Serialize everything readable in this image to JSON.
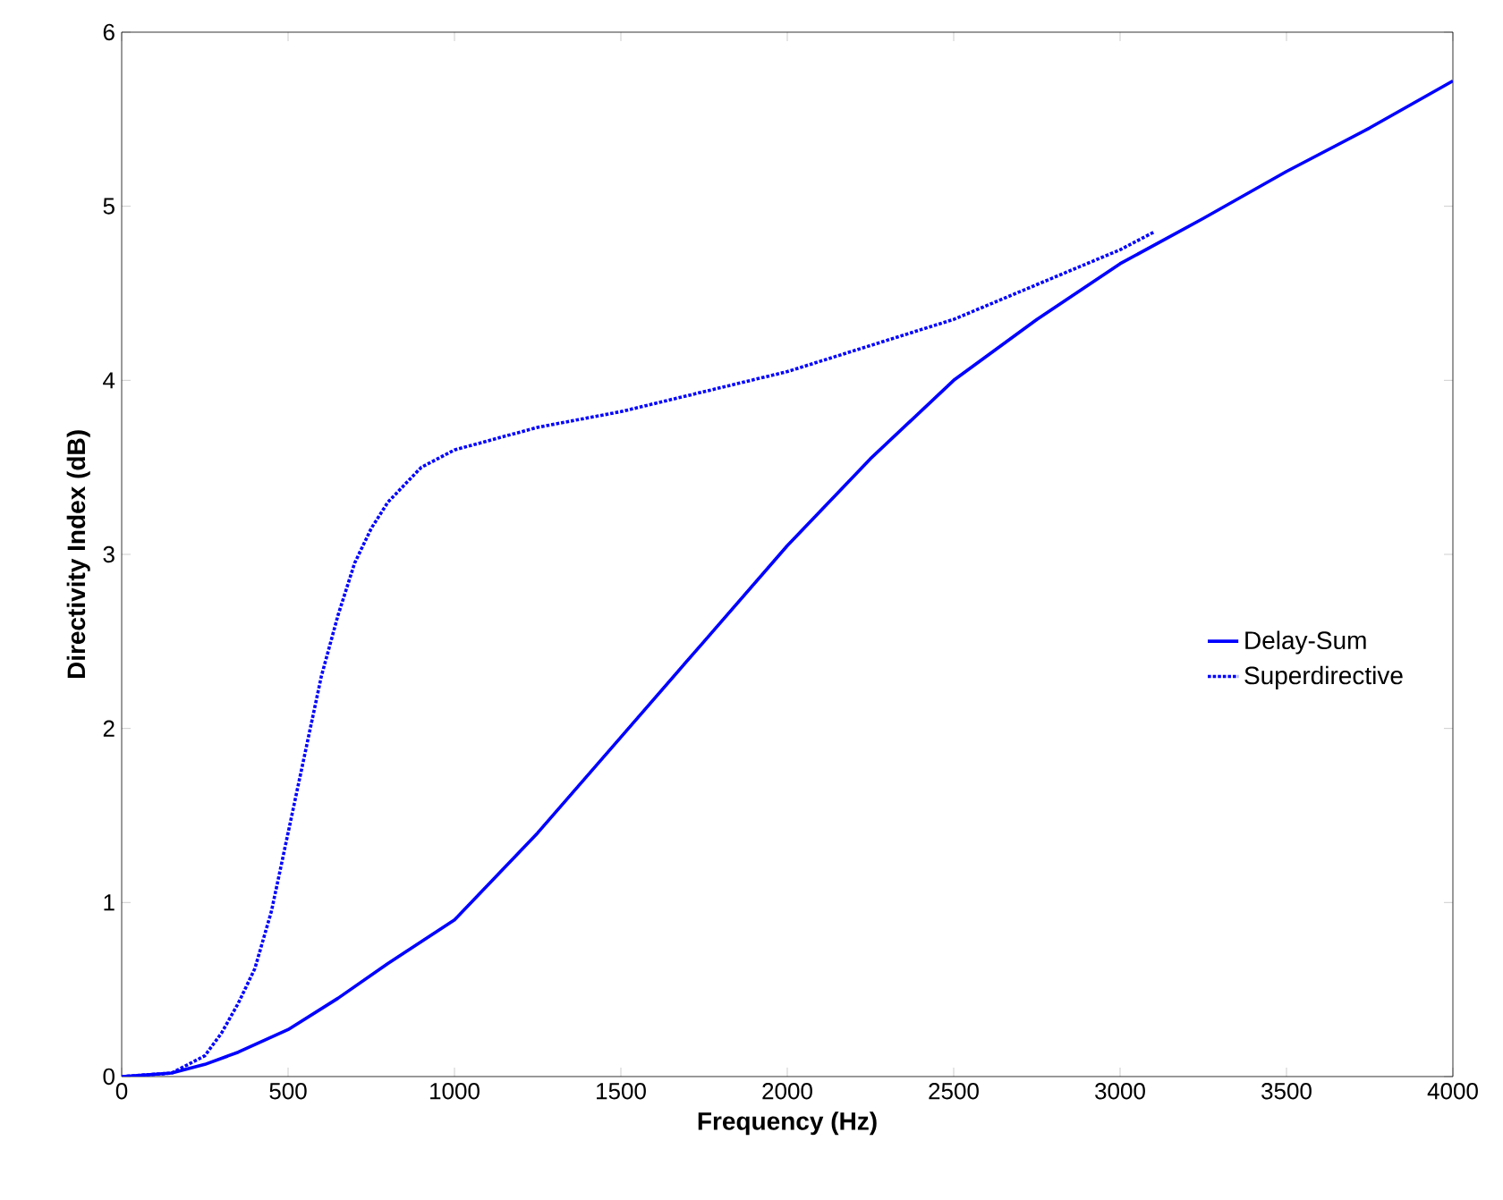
{
  "chart_data": {
    "type": "line",
    "xlabel": "Frequency (Hz)",
    "ylabel": "Directivity Index (dB)",
    "xlim": [
      0,
      4000
    ],
    "ylim": [
      0,
      6
    ],
    "xticks": [
      0,
      500,
      1000,
      1500,
      2000,
      2500,
      3000,
      3500,
      4000
    ],
    "yticks": [
      0,
      1,
      2,
      3,
      4,
      5,
      6
    ],
    "grid": false,
    "legend": "right",
    "marker": "none",
    "series": [
      {
        "name": "Delay-Sum",
        "color": "#0000ff",
        "line_style": "solid",
        "x": [
          0,
          150,
          250,
          350,
          500,
          650,
          800,
          1000,
          1250,
          1500,
          1750,
          2000,
          2250,
          2500,
          2750,
          3000,
          3250,
          3500,
          3750,
          4000
        ],
        "values": [
          0,
          0.02,
          0.07,
          0.14,
          0.27,
          0.45,
          0.65,
          0.9,
          1.4,
          1.95,
          2.5,
          3.05,
          3.55,
          4.0,
          4.35,
          4.67,
          4.93,
          5.2,
          5.45,
          5.72
        ]
      },
      {
        "name": "Superdirective",
        "color": "#0000ff",
        "line_style": "dotted",
        "x": [
          0,
          150,
          250,
          300,
          350,
          400,
          450,
          500,
          550,
          600,
          650,
          700,
          750,
          800,
          900,
          1000,
          1250,
          1500,
          2000,
          2500,
          2750,
          3000,
          3100
        ],
        "values": [
          0,
          0.02,
          0.12,
          0.25,
          0.42,
          0.62,
          0.95,
          1.4,
          1.85,
          2.3,
          2.65,
          2.95,
          3.15,
          3.3,
          3.5,
          3.6,
          3.73,
          3.82,
          4.05,
          4.35,
          4.55,
          4.75,
          4.85
        ]
      }
    ]
  }
}
